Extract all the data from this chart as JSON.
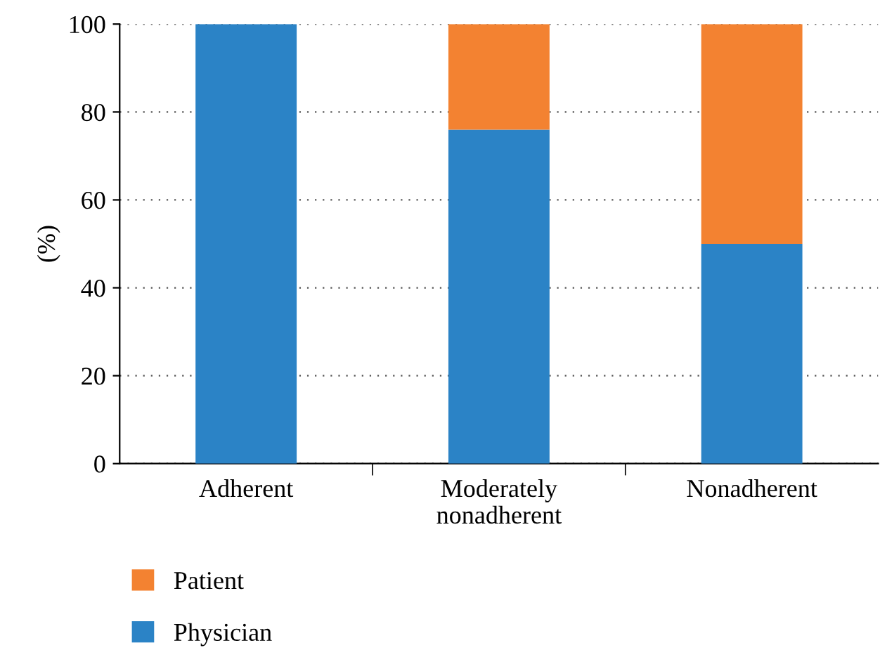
{
  "chart_data": {
    "type": "bar",
    "stacked": true,
    "ylabel": "(%)",
    "categories": [
      "Adherent",
      "Moderately\nnonadherent",
      "Nonadherent"
    ],
    "series": [
      {
        "name": "Physician",
        "color": "#2b83c6",
        "values": [
          100,
          76,
          50
        ]
      },
      {
        "name": "Patient",
        "color": "#f38231",
        "values": [
          0,
          24,
          50
        ]
      }
    ],
    "ylim": [
      0,
      100
    ],
    "yticks": [
      0,
      20,
      40,
      60,
      80,
      100
    ],
    "grid": "y",
    "legend": "bottom left"
  }
}
